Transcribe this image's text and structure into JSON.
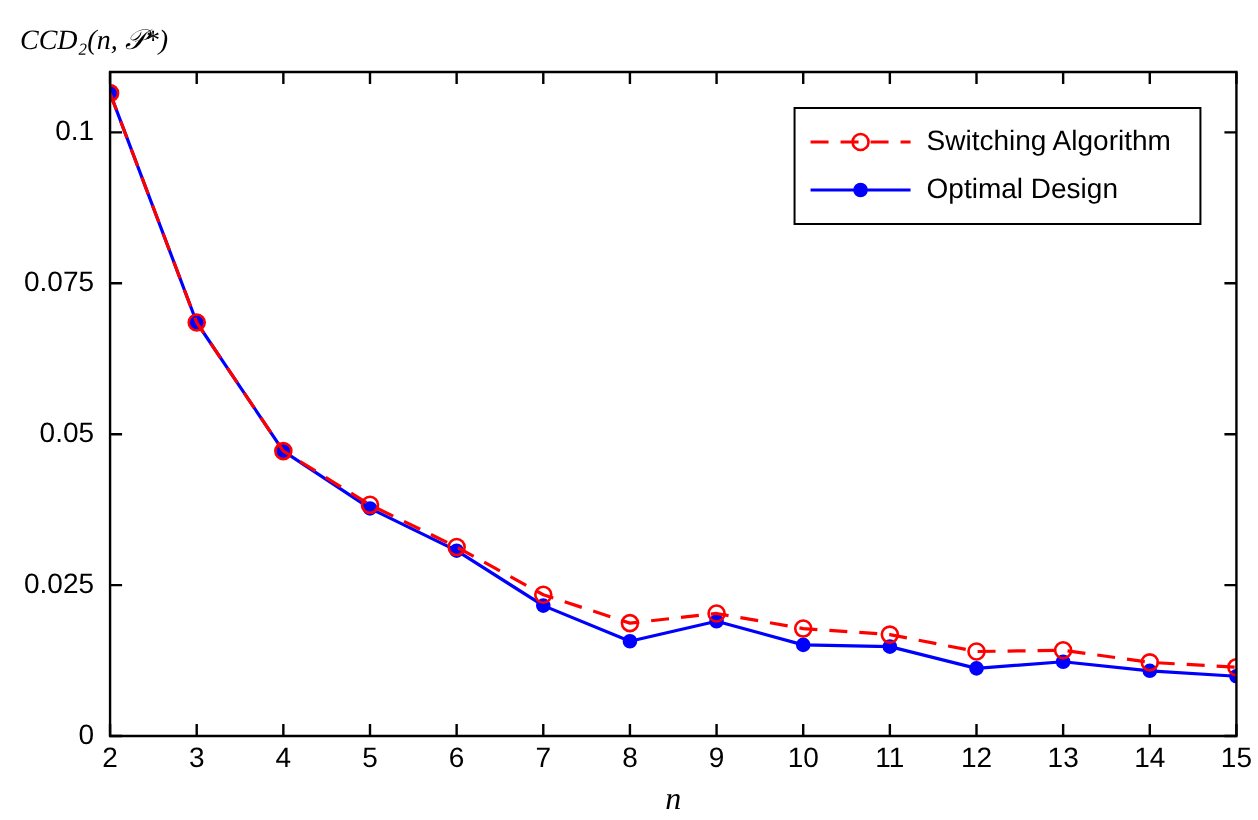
{
  "chart_data": {
    "type": "line",
    "xlabel": "n",
    "ylabel": "CCD₂(n, 𝒫*)",
    "x": [
      2,
      3,
      4,
      5,
      6,
      7,
      8,
      9,
      10,
      11,
      12,
      13,
      14,
      15
    ],
    "xlim": [
      2,
      15
    ],
    "xticks": [
      2,
      3,
      4,
      5,
      6,
      7,
      8,
      9,
      10,
      11,
      12,
      13,
      14,
      15
    ],
    "ylim": [
      0,
      0.11
    ],
    "yticks": [
      0,
      0.025,
      0.05,
      0.075,
      0.1
    ],
    "legend": "top right",
    "series": [
      {
        "name": "Switching Algorithm",
        "color": "#ff0000",
        "marker": "circle",
        "line_style": "dashed",
        "values": [
          0.1065,
          0.0685,
          0.0472,
          0.0383,
          0.0313,
          0.0234,
          0.0187,
          0.0203,
          0.0178,
          0.0168,
          0.014,
          0.0142,
          0.0122,
          0.0114
        ]
      },
      {
        "name": "Optimal Design",
        "color": "#0000ff",
        "marker": "circle",
        "line_style": "solid",
        "values": [
          0.1065,
          0.0685,
          0.0472,
          0.0377,
          0.0307,
          0.0216,
          0.0157,
          0.019,
          0.0151,
          0.0148,
          0.0112,
          0.0123,
          0.0108,
          0.0099
        ]
      }
    ]
  }
}
